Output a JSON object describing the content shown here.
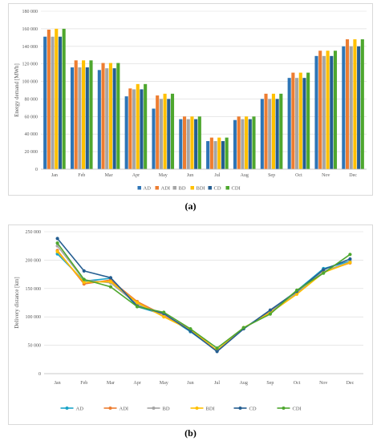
{
  "chart_data": [
    {
      "type": "bar",
      "categories": [
        "Jan",
        "Feb",
        "Mar",
        "Apr",
        "May",
        "Jun",
        "Jul",
        "Aug",
        "Sep",
        "Oct",
        "Nov",
        "Dec"
      ],
      "ylabel": "Energy demand [MWh]",
      "ylim": [
        0,
        180000
      ],
      "yticks": [
        0,
        20000,
        40000,
        60000,
        80000,
        100000,
        120000,
        140000,
        160000,
        180000
      ],
      "ytick_labels": [
        "0",
        "20 000",
        "40 000",
        "60 000",
        "80 000",
        "100 000",
        "120 000",
        "140 000",
        "160 000",
        "180 000"
      ],
      "grid": true,
      "legend_position": "bottom",
      "series": [
        {
          "name": "AD",
          "color": "#2e75b6",
          "values": [
            151000,
            116000,
            113000,
            83000,
            69000,
            57000,
            32000,
            56000,
            80000,
            104000,
            129000,
            140000
          ]
        },
        {
          "name": "ADI",
          "color": "#ed7d31",
          "values": [
            159000,
            124000,
            121000,
            92000,
            84000,
            60000,
            36000,
            60000,
            86000,
            110000,
            135000,
            148000
          ]
        },
        {
          "name": "BD",
          "color": "#a5a5a5",
          "values": [
            151000,
            116000,
            115000,
            91000,
            80000,
            57000,
            32000,
            57000,
            80000,
            104000,
            129000,
            140000
          ]
        },
        {
          "name": "BDI",
          "color": "#ffc000",
          "values": [
            160000,
            124000,
            121000,
            97000,
            86000,
            60000,
            36000,
            60000,
            86000,
            110000,
            135000,
            148000
          ]
        },
        {
          "name": "CD",
          "color": "#255e91",
          "values": [
            151000,
            116000,
            115000,
            91000,
            80000,
            57000,
            32000,
            57000,
            80000,
            104000,
            129000,
            140000
          ]
        },
        {
          "name": "CDI",
          "color": "#4ea72e",
          "values": [
            160000,
            124000,
            121000,
            97000,
            86000,
            60000,
            36000,
            60000,
            86000,
            110000,
            135000,
            148000
          ]
        }
      ]
    },
    {
      "type": "line",
      "categories": [
        "Jan",
        "Feb",
        "Mar",
        "Apr",
        "May",
        "Jun",
        "Jul",
        "Aug",
        "Sep",
        "Oct",
        "Nov",
        "Dec"
      ],
      "ylabel": "Delivery distance [km]",
      "ylim": [
        0,
        250000
      ],
      "yticks": [
        0,
        50000,
        100000,
        150000,
        200000,
        250000
      ],
      "ytick_labels": [
        "0",
        "50 000",
        "100 000",
        "150 000",
        "200 000",
        "250 000"
      ],
      "grid": true,
      "legend_position": "bottom",
      "series": [
        {
          "name": "AD",
          "color": "#1aa3c8",
          "values": [
            211000,
            163000,
            168000,
            118000,
            104000,
            74000,
            40000,
            80000,
            110000,
            146000,
            185000,
            198000
          ]
        },
        {
          "name": "ADI",
          "color": "#ed7d31",
          "values": [
            217000,
            158000,
            165000,
            127000,
            103000,
            78000,
            41000,
            80000,
            109000,
            142000,
            179000,
            195000
          ]
        },
        {
          "name": "BD",
          "color": "#a5a5a5",
          "values": [
            225000,
            165000,
            160000,
            122000,
            105000,
            76000,
            40000,
            80000,
            108000,
            143000,
            180000,
            197000
          ]
        },
        {
          "name": "BDI",
          "color": "#ffc000",
          "values": [
            215000,
            161000,
            162000,
            125000,
            100000,
            77000,
            41000,
            81000,
            107000,
            140000,
            178000,
            196000
          ]
        },
        {
          "name": "CD",
          "color": "#255e91",
          "values": [
            238000,
            181000,
            169000,
            119000,
            106000,
            75000,
            39000,
            79000,
            112000,
            145000,
            183000,
            202000
          ]
        },
        {
          "name": "CDI",
          "color": "#4ea72e",
          "values": [
            230000,
            166000,
            153000,
            118000,
            108000,
            79000,
            45000,
            81000,
            105000,
            147000,
            177000,
            210000
          ]
        }
      ]
    }
  ],
  "captions": {
    "a": "(a)",
    "b": "(b)"
  }
}
